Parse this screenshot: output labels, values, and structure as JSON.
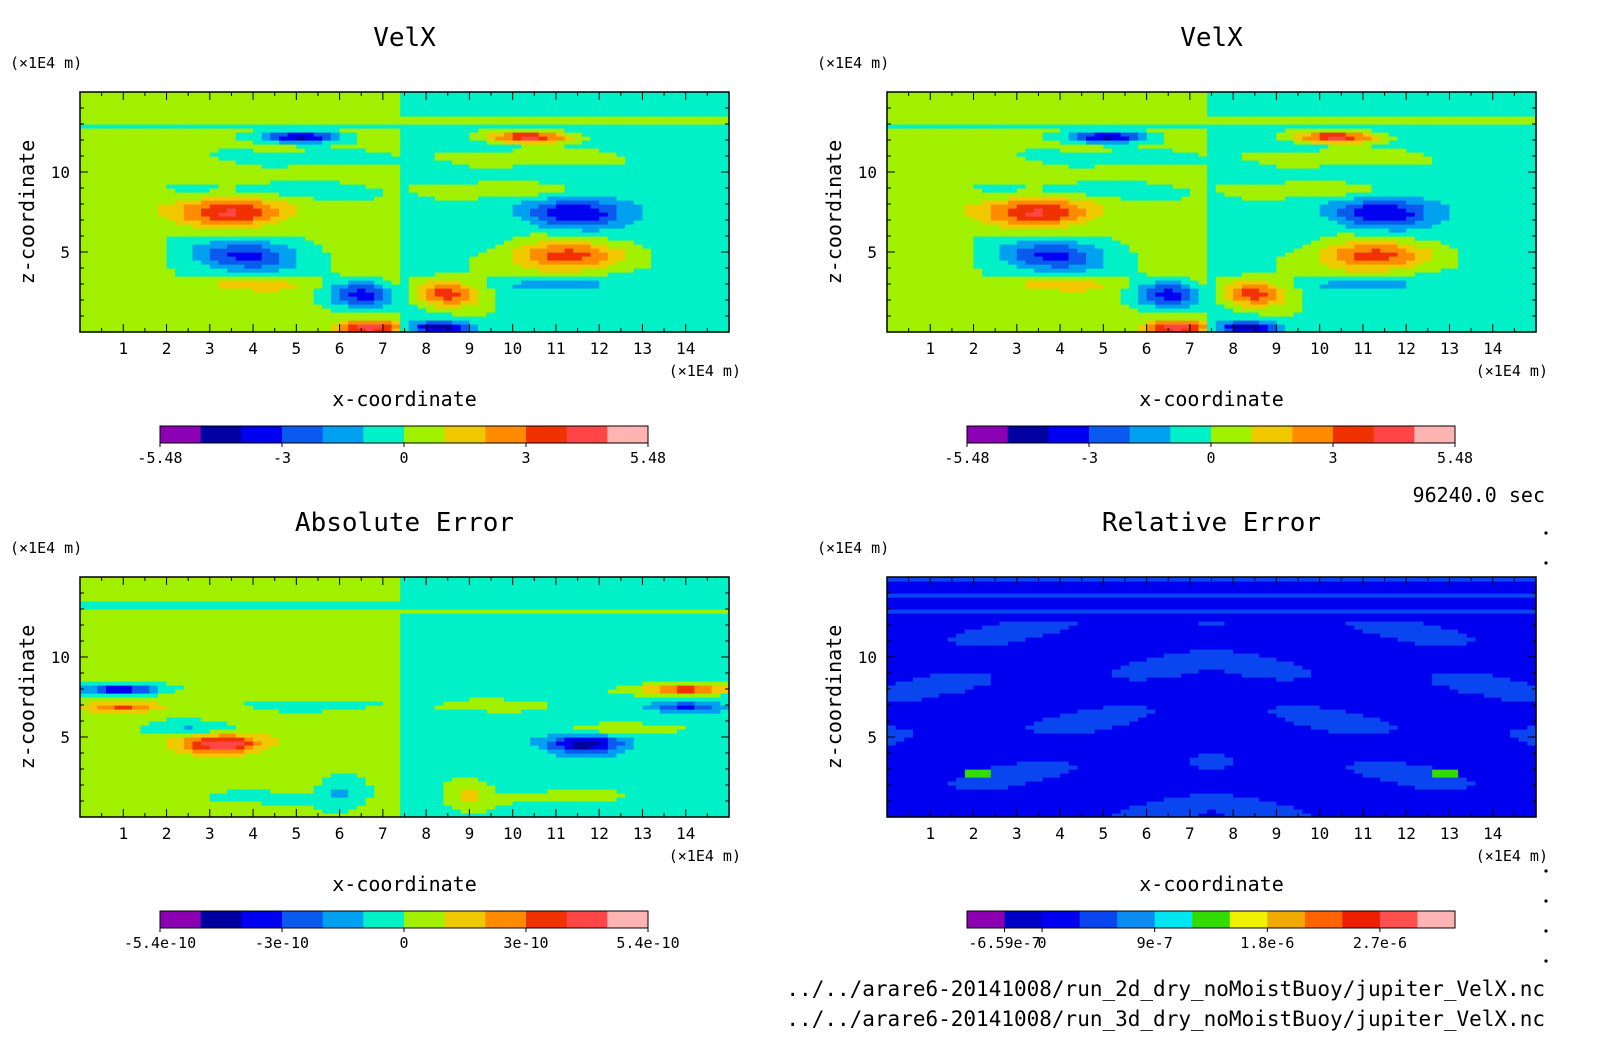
{
  "time_label": "96240.0 sec",
  "file_lines": [
    "../../arare6-20141008/run_2d_dry_noMoistBuoy/jupiter_VelX.nc",
    "../../arare6-20141008/run_3d_dry_noMoistBuoy/jupiter_VelX.nc"
  ],
  "chart_data": [
    {
      "type": "heatmap",
      "title": "VelX",
      "xlabel": "x-coordinate",
      "ylabel": "z-coordinate",
      "x_unit": "(×1E4 m)",
      "y_unit": "(×1E4 m)",
      "xlim": [
        0,
        15
      ],
      "ylim": [
        0,
        15
      ],
      "x_ticks": [
        1,
        2,
        3,
        4,
        5,
        6,
        7,
        8,
        9,
        10,
        11,
        12,
        13,
        14
      ],
      "y_ticks": [
        5,
        10
      ],
      "colorbar": {
        "levels": [
          "-5.48",
          "-3",
          "0",
          "3",
          "5.48"
        ],
        "colors": [
          "#8c00b4",
          "#0000a0",
          "#0000f0",
          "#0a5af0",
          "#00a0f0",
          "#00f0c8",
          "#a0f000",
          "#f0c800",
          "#ff8c00",
          "#f03200",
          "#ff4646",
          "#ffb4b4"
        ]
      },
      "features": [
        {
          "x": 5.1,
          "z": 12.2,
          "value": -4.6,
          "sx": 0.9,
          "sz": 0.35
        },
        {
          "x": 10.4,
          "z": 12.2,
          "value": 4.6,
          "sx": 0.9,
          "sz": 0.35
        },
        {
          "x": 3.5,
          "z": 7.5,
          "value": 3.8,
          "sx": 1.2,
          "sz": 0.9
        },
        {
          "x": 11.5,
          "z": 7.5,
          "value": -3.8,
          "sx": 1.2,
          "sz": 0.9
        },
        {
          "x": 3.8,
          "z": 4.8,
          "value": -3.6,
          "sx": 1.3,
          "sz": 1.0
        },
        {
          "x": 11.2,
          "z": 4.8,
          "value": 3.6,
          "sx": 1.3,
          "sz": 1.0
        },
        {
          "x": 6.5,
          "z": 2.4,
          "value": -3.8,
          "sx": 0.8,
          "sz": 0.8
        },
        {
          "x": 8.5,
          "z": 2.4,
          "value": 3.8,
          "sx": 0.8,
          "sz": 0.8
        },
        {
          "x": 6.7,
          "z": 0.3,
          "value": 4.5,
          "sx": 0.7,
          "sz": 0.4
        },
        {
          "x": 8.3,
          "z": 0.3,
          "value": -4.5,
          "sx": 0.7,
          "sz": 0.4
        },
        {
          "x": 4.0,
          "z": 3.0,
          "value": 1.5,
          "sx": 1.2,
          "sz": 0.4
        },
        {
          "x": 11.0,
          "z": 3.0,
          "value": -1.5,
          "sx": 1.2,
          "sz": 0.4
        },
        {
          "x": 5.5,
          "z": 8.8,
          "value": -1.2,
          "sx": 2.5,
          "sz": 0.5
        },
        {
          "x": 9.5,
          "z": 8.8,
          "value": 1.2,
          "sx": 2.5,
          "sz": 0.5
        },
        {
          "x": 5.0,
          "z": 11.0,
          "value": -0.9,
          "sx": 2.0,
          "sz": 0.5
        },
        {
          "x": 10.0,
          "z": 11.0,
          "value": 0.9,
          "sx": 2.0,
          "sz": 0.5
        }
      ],
      "background": {
        "left": 0.3,
        "right": -0.3,
        "bands": [
          {
            "z": 13.2,
            "value": 0.6
          },
          {
            "z": 12.9,
            "value": -0.3
          }
        ]
      }
    },
    {
      "type": "heatmap",
      "title": "VelX",
      "xlabel": "x-coordinate",
      "ylabel": "z-coordinate",
      "x_unit": "(×1E4 m)",
      "y_unit": "(×1E4 m)",
      "xlim": [
        0,
        15
      ],
      "ylim": [
        0,
        15
      ],
      "x_ticks": [
        1,
        2,
        3,
        4,
        5,
        6,
        7,
        8,
        9,
        10,
        11,
        12,
        13,
        14
      ],
      "y_ticks": [
        5,
        10
      ],
      "colorbar": {
        "levels": [
          "-5.48",
          "-3",
          "0",
          "3",
          "5.48"
        ],
        "colors": [
          "#8c00b4",
          "#0000a0",
          "#0000f0",
          "#0a5af0",
          "#00a0f0",
          "#00f0c8",
          "#a0f000",
          "#f0c800",
          "#ff8c00",
          "#f03200",
          "#ff4646",
          "#ffb4b4"
        ]
      },
      "features": [
        {
          "x": 5.1,
          "z": 12.2,
          "value": -4.6,
          "sx": 0.9,
          "sz": 0.35
        },
        {
          "x": 10.4,
          "z": 12.2,
          "value": 4.6,
          "sx": 0.9,
          "sz": 0.35
        },
        {
          "x": 3.5,
          "z": 7.5,
          "value": 3.8,
          "sx": 1.2,
          "sz": 0.9
        },
        {
          "x": 11.5,
          "z": 7.5,
          "value": -3.8,
          "sx": 1.2,
          "sz": 0.9
        },
        {
          "x": 3.8,
          "z": 4.8,
          "value": -3.6,
          "sx": 1.3,
          "sz": 1.0
        },
        {
          "x": 11.2,
          "z": 4.8,
          "value": 3.6,
          "sx": 1.3,
          "sz": 1.0
        },
        {
          "x": 6.5,
          "z": 2.4,
          "value": -3.8,
          "sx": 0.8,
          "sz": 0.8
        },
        {
          "x": 8.5,
          "z": 2.4,
          "value": 3.8,
          "sx": 0.8,
          "sz": 0.8
        },
        {
          "x": 6.7,
          "z": 0.3,
          "value": 4.5,
          "sx": 0.7,
          "sz": 0.4
        },
        {
          "x": 8.3,
          "z": 0.3,
          "value": -4.5,
          "sx": 0.7,
          "sz": 0.4
        },
        {
          "x": 4.0,
          "z": 3.0,
          "value": 1.5,
          "sx": 1.2,
          "sz": 0.4
        },
        {
          "x": 11.0,
          "z": 3.0,
          "value": -1.5,
          "sx": 1.2,
          "sz": 0.4
        },
        {
          "x": 5.5,
          "z": 8.8,
          "value": -1.2,
          "sx": 2.5,
          "sz": 0.5
        },
        {
          "x": 9.5,
          "z": 8.8,
          "value": 1.2,
          "sx": 2.5,
          "sz": 0.5
        },
        {
          "x": 5.0,
          "z": 11.0,
          "value": -0.9,
          "sx": 2.0,
          "sz": 0.5
        },
        {
          "x": 10.0,
          "z": 11.0,
          "value": 0.9,
          "sx": 2.0,
          "sz": 0.5
        }
      ],
      "background": {
        "left": 0.3,
        "right": -0.3,
        "bands": [
          {
            "z": 13.2,
            "value": 0.6
          },
          {
            "z": 12.9,
            "value": -0.3
          }
        ]
      }
    },
    {
      "type": "heatmap",
      "title": "Absolute Error",
      "xlabel": "x-coordinate",
      "ylabel": "z-coordinate",
      "x_unit": "(×1E4 m)",
      "y_unit": "(×1E4 m)",
      "xlim": [
        0,
        15
      ],
      "ylim": [
        0,
        15
      ],
      "x_ticks": [
        1,
        2,
        3,
        4,
        5,
        6,
        7,
        8,
        9,
        10,
        11,
        12,
        13,
        14
      ],
      "y_ticks": [
        5,
        10
      ],
      "colorbar": {
        "levels": [
          "-5.4e-10",
          "-3e-10",
          "0",
          "3e-10",
          "5.4e-10"
        ],
        "colors": [
          "#8c00b4",
          "#0000a0",
          "#0000f0",
          "#0a5af0",
          "#00a0f0",
          "#00f0c8",
          "#a0f000",
          "#f0c800",
          "#ff8c00",
          "#f03200",
          "#ff4646",
          "#ffb4b4"
        ]
      },
      "features": [
        {
          "x": 1.0,
          "z": 8.0,
          "value": -4.2,
          "sx": 0.9,
          "sz": 0.3
        },
        {
          "x": 14.0,
          "z": 8.0,
          "value": 4.2,
          "sx": 0.9,
          "sz": 0.3
        },
        {
          "x": 1.0,
          "z": 6.9,
          "value": 2.8,
          "sx": 0.8,
          "sz": 0.3
        },
        {
          "x": 14.0,
          "z": 6.9,
          "value": -2.8,
          "sx": 0.8,
          "sz": 0.3
        },
        {
          "x": 3.3,
          "z": 4.6,
          "value": 4.6,
          "sx": 0.9,
          "sz": 0.6
        },
        {
          "x": 11.7,
          "z": 4.6,
          "value": -4.6,
          "sx": 0.9,
          "sz": 0.6
        },
        {
          "x": 2.6,
          "z": 5.5,
          "value": -1.4,
          "sx": 1.0,
          "sz": 0.4
        },
        {
          "x": 12.4,
          "z": 5.5,
          "value": 1.4,
          "sx": 1.0,
          "sz": 0.4
        },
        {
          "x": 6.0,
          "z": 1.5,
          "value": -1.5,
          "sx": 0.5,
          "sz": 1.0
        },
        {
          "x": 9.0,
          "z": 1.5,
          "value": 1.5,
          "sx": 0.5,
          "sz": 1.0
        },
        {
          "x": 3.8,
          "z": 1.3,
          "value": -1.2,
          "sx": 1.0,
          "sz": 0.3
        },
        {
          "x": 11.2,
          "z": 1.3,
          "value": 1.2,
          "sx": 1.0,
          "sz": 0.3
        },
        {
          "x": 5.5,
          "z": 7.0,
          "value": -0.8,
          "sx": 1.5,
          "sz": 0.3
        },
        {
          "x": 9.5,
          "z": 7.0,
          "value": 0.8,
          "sx": 1.5,
          "sz": 0.3
        }
      ],
      "background": {
        "left": 0.3,
        "right": -0.3,
        "bands": [
          {
            "z": 13.2,
            "value": -0.3
          },
          {
            "z": 12.9,
            "value": 0.6
          }
        ]
      }
    },
    {
      "type": "heatmap",
      "title": "Relative Error",
      "xlabel": "x-coordinate",
      "ylabel": "z-coordinate",
      "x_unit": "(×1E4 m)",
      "y_unit": "(×1E4 m)",
      "xlim": [
        0,
        15
      ],
      "ylim": [
        0,
        15
      ],
      "x_ticks": [
        1,
        2,
        3,
        4,
        5,
        6,
        7,
        8,
        9,
        10,
        11,
        12,
        13,
        14
      ],
      "y_ticks": [
        5,
        10
      ],
      "colorbar": {
        "levels": [
          "-6.59e-7",
          "0",
          "9e-7",
          "1.8e-6",
          "2.7e-6"
        ],
        "colors": [
          "#8c00b4",
          "#0000c8",
          "#0000f0",
          "#0a46f0",
          "#0a8cf0",
          "#00e6f0",
          "#32dc00",
          "#f0f000",
          "#f0aa00",
          "#ff6400",
          "#f01e00",
          "#ff5050",
          "#ffb4b4"
        ]
      },
      "features": [],
      "background": {
        "left": -0.5,
        "right": -0.5,
        "bands": []
      }
    }
  ]
}
